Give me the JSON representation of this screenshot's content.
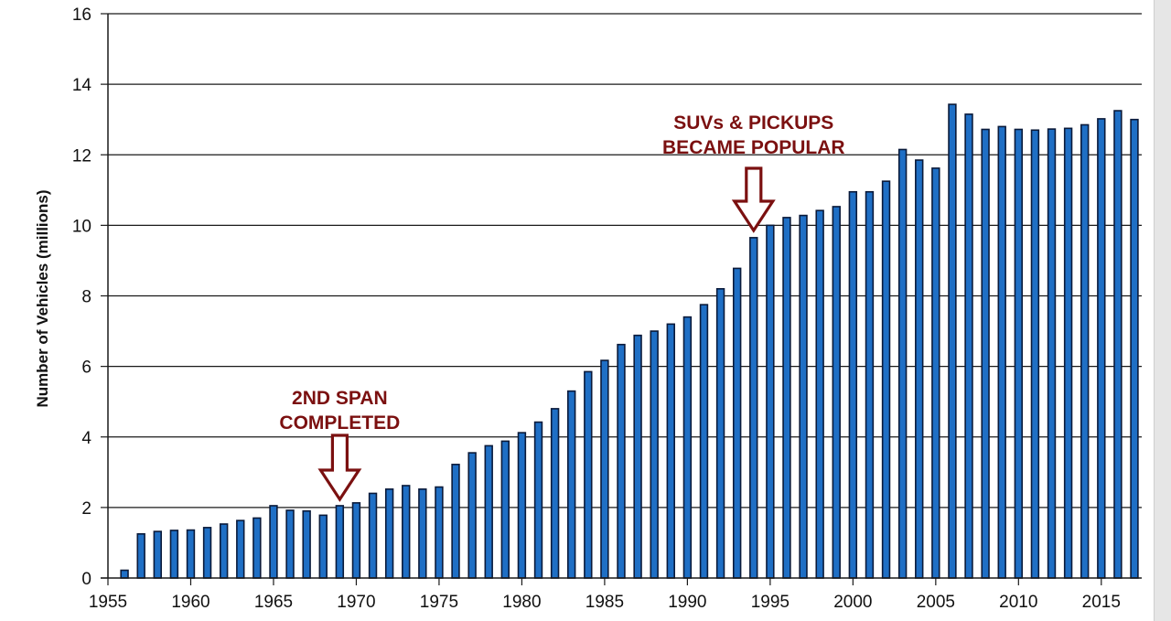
{
  "chart_data": {
    "type": "bar",
    "title": "",
    "xlabel": "",
    "ylabel": "Number of Vehicles (millions)",
    "ylim": [
      0,
      16
    ],
    "xlim": [
      1955,
      2017
    ],
    "y_ticks": [
      0,
      2,
      4,
      6,
      8,
      10,
      12,
      14,
      16
    ],
    "x_ticks": [
      1955,
      1960,
      1965,
      1970,
      1975,
      1980,
      1985,
      1990,
      1995,
      2000,
      2005,
      2010,
      2015
    ],
    "grid": "horizontal",
    "legend": "none",
    "bar_color": "#1f6fc5",
    "bar_edge_color": "#0a1a3a",
    "categories": [
      1956,
      1957,
      1958,
      1959,
      1960,
      1961,
      1962,
      1963,
      1964,
      1965,
      1966,
      1967,
      1968,
      1969,
      1970,
      1971,
      1972,
      1973,
      1974,
      1975,
      1976,
      1977,
      1978,
      1979,
      1980,
      1981,
      1982,
      1983,
      1984,
      1985,
      1986,
      1987,
      1988,
      1989,
      1990,
      1991,
      1992,
      1993,
      1994,
      1995,
      1996,
      1997,
      1998,
      1999,
      2000,
      2001,
      2002,
      2003,
      2004,
      2005,
      2006,
      2007,
      2008,
      2009,
      2010,
      2011,
      2012,
      2013,
      2014,
      2015,
      2016,
      2017
    ],
    "values": [
      0.22,
      1.25,
      1.32,
      1.35,
      1.36,
      1.43,
      1.53,
      1.63,
      1.7,
      2.05,
      1.92,
      1.9,
      1.78,
      2.05,
      2.13,
      2.4,
      2.52,
      2.62,
      2.52,
      2.58,
      3.22,
      3.55,
      3.75,
      3.88,
      4.12,
      4.42,
      4.8,
      5.3,
      5.85,
      6.17,
      6.62,
      6.88,
      7.0,
      7.2,
      7.4,
      7.75,
      8.2,
      8.78,
      9.65,
      10.0,
      10.22,
      10.28,
      10.42,
      10.53,
      10.95,
      10.95,
      11.25,
      12.15,
      11.85,
      11.62,
      13.43,
      13.15,
      12.72,
      12.8,
      12.72,
      12.7,
      12.73,
      12.75,
      12.85,
      13.02,
      13.25,
      13.0
    ],
    "annotations": [
      {
        "lines": [
          "2ND SPAN",
          "COMPLETED"
        ],
        "year": 1969,
        "color": "#7b1010"
      },
      {
        "lines": [
          "SUVs & PICKUPS",
          "BECAME POPULAR"
        ],
        "year": 1994,
        "color": "#7b1010"
      }
    ]
  }
}
